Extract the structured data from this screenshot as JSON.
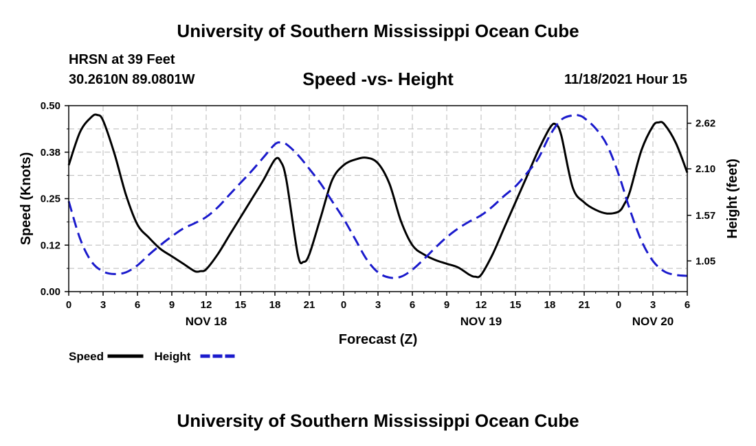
{
  "header": {
    "title": "University of Southern Mississippi Ocean Cube",
    "station": "HRSN at 39 Feet",
    "coords": "30.2610N  89.0801W",
    "subtitle": "Speed -vs- Height",
    "datetime": "11/18/2021 Hour 15"
  },
  "footer": {
    "title": "University of Southern Mississippi Ocean Cube"
  },
  "chart_data": {
    "type": "line",
    "title": "Speed -vs- Height",
    "xlabel": "Forecast (Z)",
    "ylabel_left": "Speed (Knots)",
    "ylabel_right": "Height (feet)",
    "x_range_hours": [
      0,
      54
    ],
    "x_ticks": [
      {
        "h": 0,
        "label": "0"
      },
      {
        "h": 3,
        "label": "3"
      },
      {
        "h": 6,
        "label": "6"
      },
      {
        "h": 9,
        "label": "9"
      },
      {
        "h": 12,
        "label": "12"
      },
      {
        "h": 15,
        "label": "15"
      },
      {
        "h": 18,
        "label": "18"
      },
      {
        "h": 21,
        "label": "21"
      },
      {
        "h": 24,
        "label": "0"
      },
      {
        "h": 27,
        "label": "3"
      },
      {
        "h": 30,
        "label": "6"
      },
      {
        "h": 33,
        "label": "9"
      },
      {
        "h": 36,
        "label": "12"
      },
      {
        "h": 39,
        "label": "15"
      },
      {
        "h": 42,
        "label": "18"
      },
      {
        "h": 45,
        "label": "21"
      },
      {
        "h": 48,
        "label": "0"
      },
      {
        "h": 51,
        "label": "3"
      },
      {
        "h": 54,
        "label": "6"
      }
    ],
    "date_labels": [
      {
        "h": 12,
        "label": "NOV 18"
      },
      {
        "h": 36,
        "label": "NOV 19"
      },
      {
        "h": 51,
        "label": "NOV 20"
      }
    ],
    "ylim_left": [
      0,
      0.5
    ],
    "yticks_left": [
      "0.00",
      "0.12",
      "0.25",
      "0.38",
      "0.50"
    ],
    "ylim_right": [
      0.7,
      2.82
    ],
    "yticks_right": [
      {
        "v": 1.05,
        "label": "1.05"
      },
      {
        "v": 1.57,
        "label": "1.57"
      },
      {
        "v": 2.1,
        "label": "2.10"
      },
      {
        "v": 2.62,
        "label": "2.62"
      }
    ],
    "series": [
      {
        "name": "Speed",
        "axis": "left",
        "color": "#000000",
        "dash": "solid",
        "x": [
          0,
          1,
          2,
          2.5,
          3,
          4,
          5,
          6,
          7,
          8,
          9,
          10,
          11,
          11.5,
          12,
          13,
          14,
          15,
          16,
          17,
          18,
          18.5,
          19,
          20,
          20.5,
          21,
          22,
          23,
          24,
          25,
          26,
          27,
          28,
          29,
          30,
          31,
          32,
          33,
          34,
          35,
          35.5,
          36,
          37,
          38,
          39,
          40,
          41,
          42,
          42.5,
          43,
          44,
          45,
          46,
          47,
          48,
          48.5,
          49,
          50,
          51,
          51.5,
          52,
          53,
          54
        ],
        "values": [
          0.34,
          0.43,
          0.47,
          0.475,
          0.46,
          0.37,
          0.26,
          0.18,
          0.145,
          0.115,
          0.095,
          0.075,
          0.055,
          0.055,
          0.06,
          0.1,
          0.15,
          0.2,
          0.25,
          0.3,
          0.355,
          0.35,
          0.3,
          0.1,
          0.08,
          0.1,
          0.2,
          0.3,
          0.34,
          0.355,
          0.36,
          0.345,
          0.29,
          0.19,
          0.125,
          0.1,
          0.085,
          0.075,
          0.065,
          0.045,
          0.04,
          0.045,
          0.1,
          0.17,
          0.24,
          0.31,
          0.38,
          0.44,
          0.45,
          0.42,
          0.28,
          0.24,
          0.22,
          0.21,
          0.215,
          0.235,
          0.27,
          0.38,
          0.445,
          0.455,
          0.45,
          0.4,
          0.32
        ]
      },
      {
        "name": "Height",
        "axis": "right",
        "color": "#1a1acc",
        "dash": "dashed",
        "x": [
          0,
          1,
          2,
          3,
          4,
          5,
          6,
          7,
          8,
          9,
          10,
          11,
          12,
          13,
          14,
          15,
          16,
          17,
          18,
          18.5,
          19,
          20,
          21,
          22,
          23,
          24,
          25,
          26,
          27,
          28,
          29,
          30,
          31,
          32,
          33,
          34,
          35,
          36,
          37,
          38,
          39,
          40,
          41,
          42,
          43,
          44,
          44.5,
          45,
          46,
          47,
          48,
          49,
          50,
          51,
          52,
          53,
          54
        ],
        "values": [
          1.73,
          1.3,
          1.04,
          0.93,
          0.9,
          0.92,
          1.0,
          1.12,
          1.23,
          1.33,
          1.42,
          1.48,
          1.55,
          1.66,
          1.8,
          1.94,
          2.08,
          2.23,
          2.38,
          2.4,
          2.38,
          2.26,
          2.1,
          1.93,
          1.73,
          1.53,
          1.3,
          1.07,
          0.92,
          0.86,
          0.87,
          0.95,
          1.07,
          1.2,
          1.32,
          1.42,
          1.5,
          1.57,
          1.67,
          1.79,
          1.9,
          2.05,
          2.22,
          2.48,
          2.66,
          2.71,
          2.71,
          2.68,
          2.56,
          2.37,
          2.04,
          1.63,
          1.28,
          1.05,
          0.93,
          0.89,
          0.88
        ]
      }
    ],
    "legend": [
      {
        "name": "Speed",
        "color": "#000000"
      },
      {
        "name": "Height",
        "color": "#1a1acc"
      }
    ]
  }
}
